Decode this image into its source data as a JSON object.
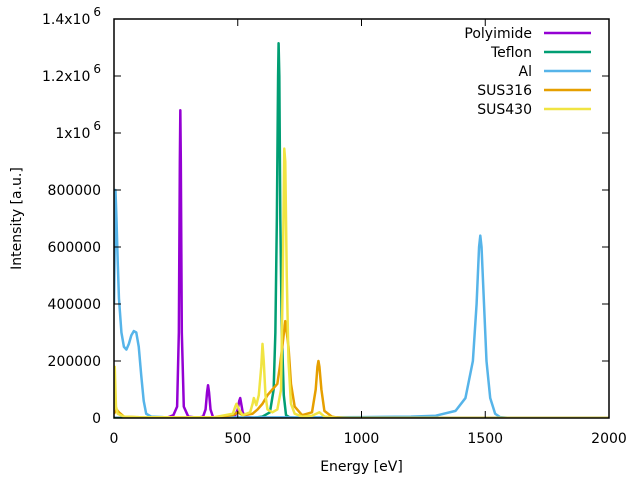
{
  "chart_data": {
    "type": "line",
    "xlabel": "Energy [eV]",
    "ylabel": "Intensity [a.u.]",
    "xlim": [
      0,
      2000
    ],
    "ylim": [
      0,
      1400000
    ],
    "grid": false,
    "legend_position": "top-right",
    "x_ticks": [
      0,
      500,
      1000,
      1500,
      2000
    ],
    "x_tick_labels": [
      "0",
      "500",
      "1000",
      "1500",
      "2000"
    ],
    "y_ticks": [
      0,
      200000,
      400000,
      600000,
      800000,
      1000000,
      1200000,
      1400000
    ],
    "y_tick_labels": [
      {
        "base": "0",
        "exp": ""
      },
      {
        "base": "200000",
        "exp": ""
      },
      {
        "base": "400000",
        "exp": ""
      },
      {
        "base": "600000",
        "exp": ""
      },
      {
        "base": "800000",
        "exp": ""
      },
      {
        "base": "1x10",
        "exp": "6"
      },
      {
        "base": "1.2x10",
        "exp": "6"
      },
      {
        "base": "1.4x10",
        "exp": "6"
      }
    ],
    "series": [
      {
        "name": "Polyimide",
        "color": "#9400d3",
        "points": [
          [
            0,
            0
          ],
          [
            200,
            0
          ],
          [
            220,
            3000
          ],
          [
            240,
            10000
          ],
          [
            255,
            40000
          ],
          [
            262,
            300000
          ],
          [
            266,
            900000
          ],
          [
            268,
            1080000
          ],
          [
            270,
            900000
          ],
          [
            274,
            300000
          ],
          [
            282,
            40000
          ],
          [
            300,
            5000
          ],
          [
            340,
            1000
          ],
          [
            360,
            5000
          ],
          [
            370,
            30000
          ],
          [
            376,
            90000
          ],
          [
            380,
            115000
          ],
          [
            384,
            90000
          ],
          [
            390,
            30000
          ],
          [
            400,
            3000
          ],
          [
            450,
            2000
          ],
          [
            490,
            10000
          ],
          [
            500,
            30000
          ],
          [
            506,
            60000
          ],
          [
            510,
            70000
          ],
          [
            514,
            50000
          ],
          [
            520,
            20000
          ],
          [
            530,
            5000
          ],
          [
            560,
            1000
          ],
          [
            600,
            500
          ],
          [
            700,
            0
          ],
          [
            2000,
            0
          ]
        ]
      },
      {
        "name": "Teflon",
        "color": "#009e73",
        "points": [
          [
            0,
            0
          ],
          [
            560,
            0
          ],
          [
            600,
            5000
          ],
          [
            630,
            20000
          ],
          [
            645,
            100000
          ],
          [
            652,
            300000
          ],
          [
            658,
            700000
          ],
          [
            663,
            1200000
          ],
          [
            665,
            1315000
          ],
          [
            668,
            1200000
          ],
          [
            672,
            700000
          ],
          [
            678,
            300000
          ],
          [
            686,
            80000
          ],
          [
            695,
            10000
          ],
          [
            710,
            2000
          ],
          [
            740,
            0
          ],
          [
            2000,
            0
          ]
        ]
      },
      {
        "name": "Al",
        "color": "#56b4e9",
        "points": [
          [
            0,
            400000
          ],
          [
            6,
            800000
          ],
          [
            10,
            700000
          ],
          [
            15,
            550000
          ],
          [
            20,
            420000
          ],
          [
            30,
            300000
          ],
          [
            40,
            250000
          ],
          [
            50,
            240000
          ],
          [
            60,
            260000
          ],
          [
            70,
            290000
          ],
          [
            80,
            305000
          ],
          [
            90,
            300000
          ],
          [
            100,
            250000
          ],
          [
            110,
            150000
          ],
          [
            120,
            60000
          ],
          [
            130,
            15000
          ],
          [
            150,
            5000
          ],
          [
            200,
            3000
          ],
          [
            400,
            2000
          ],
          [
            600,
            2000
          ],
          [
            800,
            2000
          ],
          [
            1000,
            3000
          ],
          [
            1200,
            5000
          ],
          [
            1300,
            8000
          ],
          [
            1380,
            25000
          ],
          [
            1420,
            70000
          ],
          [
            1450,
            200000
          ],
          [
            1465,
            400000
          ],
          [
            1475,
            600000
          ],
          [
            1480,
            640000
          ],
          [
            1485,
            600000
          ],
          [
            1495,
            400000
          ],
          [
            1505,
            200000
          ],
          [
            1520,
            70000
          ],
          [
            1540,
            15000
          ],
          [
            1560,
            3000
          ],
          [
            1600,
            0
          ],
          [
            2000,
            0
          ]
        ]
      },
      {
        "name": "SUS316",
        "color": "#e69f00",
        "points": [
          [
            0,
            15000
          ],
          [
            10,
            30000
          ],
          [
            20,
            20000
          ],
          [
            40,
            5000
          ],
          [
            100,
            2000
          ],
          [
            400,
            2000
          ],
          [
            480,
            10000
          ],
          [
            500,
            20000
          ],
          [
            520,
            10000
          ],
          [
            560,
            15000
          ],
          [
            580,
            30000
          ],
          [
            600,
            50000
          ],
          [
            620,
            80000
          ],
          [
            640,
            100000
          ],
          [
            660,
            120000
          ],
          [
            670,
            180000
          ],
          [
            680,
            250000
          ],
          [
            688,
            310000
          ],
          [
            692,
            340000
          ],
          [
            698,
            300000
          ],
          [
            705,
            250000
          ],
          [
            715,
            120000
          ],
          [
            730,
            40000
          ],
          [
            760,
            10000
          ],
          [
            800,
            20000
          ],
          [
            815,
            100000
          ],
          [
            822,
            180000
          ],
          [
            826,
            200000
          ],
          [
            830,
            180000
          ],
          [
            838,
            100000
          ],
          [
            850,
            25000
          ],
          [
            880,
            5000
          ],
          [
            900,
            2000
          ],
          [
            950,
            0
          ],
          [
            2000,
            0
          ]
        ]
      },
      {
        "name": "SUS430",
        "color": "#f0e442",
        "points": [
          [
            0,
            30000
          ],
          [
            3,
            180000
          ],
          [
            8,
            40000
          ],
          [
            15,
            15000
          ],
          [
            40,
            5000
          ],
          [
            100,
            3000
          ],
          [
            400,
            2000
          ],
          [
            480,
            15000
          ],
          [
            490,
            40000
          ],
          [
            495,
            50000
          ],
          [
            505,
            30000
          ],
          [
            520,
            10000
          ],
          [
            550,
            20000
          ],
          [
            560,
            50000
          ],
          [
            565,
            70000
          ],
          [
            575,
            45000
          ],
          [
            585,
            80000
          ],
          [
            595,
            180000
          ],
          [
            600,
            260000
          ],
          [
            605,
            200000
          ],
          [
            612,
            80000
          ],
          [
            620,
            30000
          ],
          [
            640,
            20000
          ],
          [
            660,
            30000
          ],
          [
            675,
            100000
          ],
          [
            682,
            500000
          ],
          [
            688,
            945000
          ],
          [
            692,
            900000
          ],
          [
            698,
            500000
          ],
          [
            705,
            200000
          ],
          [
            715,
            50000
          ],
          [
            730,
            15000
          ],
          [
            760,
            5000
          ],
          [
            800,
            8000
          ],
          [
            830,
            20000
          ],
          [
            850,
            5000
          ],
          [
            900,
            1000
          ],
          [
            950,
            0
          ],
          [
            2000,
            0
          ]
        ]
      }
    ]
  }
}
